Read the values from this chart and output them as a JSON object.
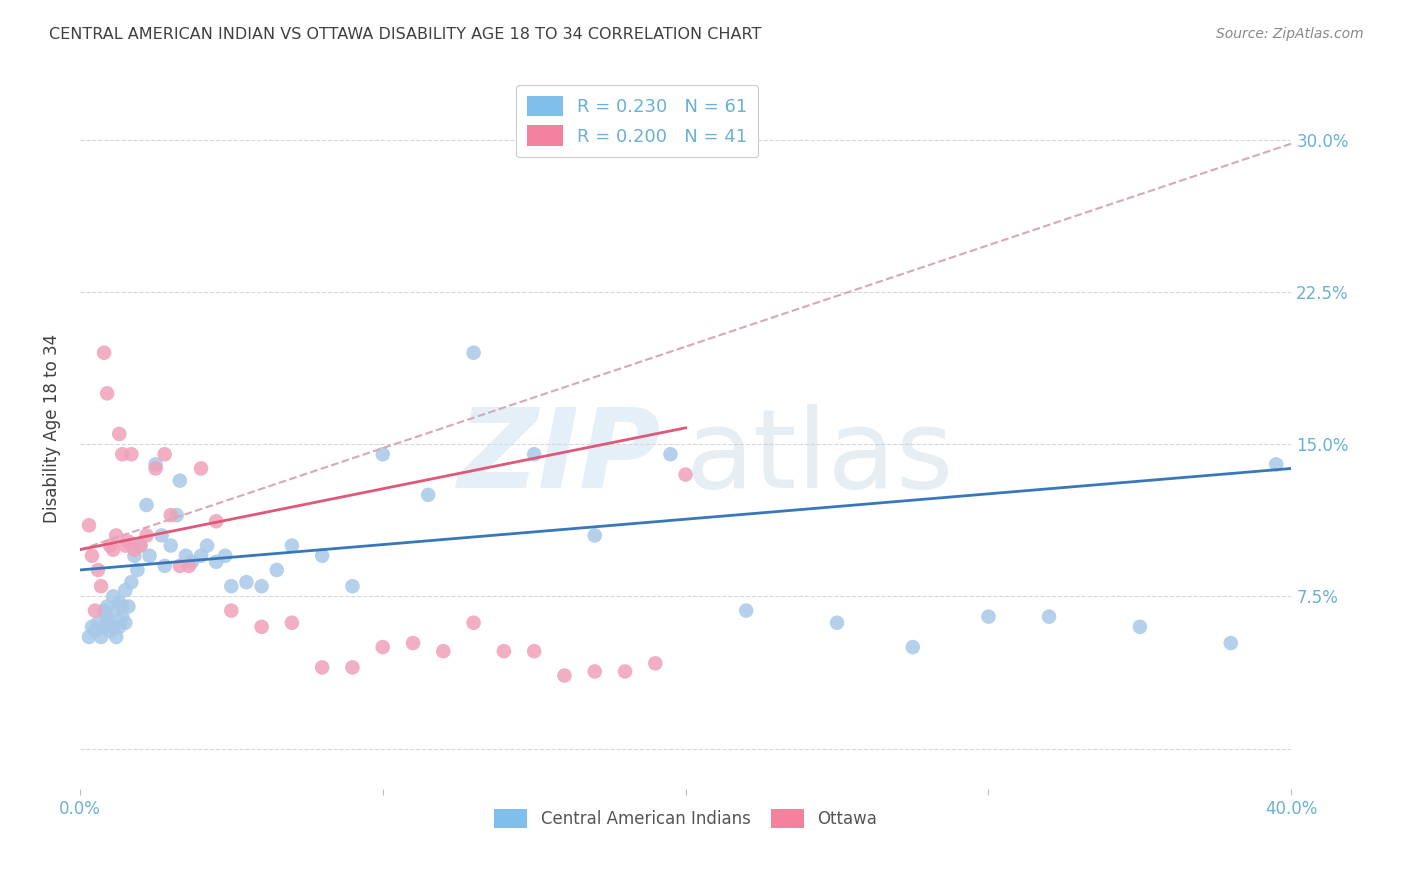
{
  "title": "CENTRAL AMERICAN INDIAN VS OTTAWA DISABILITY AGE 18 TO 34 CORRELATION CHART",
  "source": "Source: ZipAtlas.com",
  "ylabel": "Disability Age 18 to 34",
  "ytick_values": [
    0.0,
    0.075,
    0.15,
    0.225,
    0.3
  ],
  "ytick_labels": [
    "",
    "7.5%",
    "15.0%",
    "22.5%",
    "30.0%"
  ],
  "xlim": [
    0.0,
    0.4
  ],
  "ylim": [
    -0.02,
    0.335
  ],
  "legend_color1": "#7fbfea",
  "legend_color2": "#f4829e",
  "watermark_zip": "ZIP",
  "watermark_atlas": "atlas",
  "blue_scatter_x": [
    0.003,
    0.004,
    0.005,
    0.006,
    0.007,
    0.008,
    0.008,
    0.009,
    0.009,
    0.01,
    0.01,
    0.011,
    0.011,
    0.012,
    0.012,
    0.013,
    0.013,
    0.014,
    0.014,
    0.015,
    0.015,
    0.016,
    0.017,
    0.018,
    0.019,
    0.02,
    0.022,
    0.023,
    0.025,
    0.027,
    0.028,
    0.03,
    0.032,
    0.033,
    0.035,
    0.037,
    0.04,
    0.042,
    0.045,
    0.048,
    0.05,
    0.055,
    0.06,
    0.065,
    0.07,
    0.08,
    0.09,
    0.1,
    0.115,
    0.13,
    0.15,
    0.17,
    0.195,
    0.22,
    0.25,
    0.275,
    0.3,
    0.32,
    0.35,
    0.38,
    0.395
  ],
  "blue_scatter_y": [
    0.055,
    0.06,
    0.058,
    0.062,
    0.055,
    0.068,
    0.06,
    0.065,
    0.07,
    0.058,
    0.062,
    0.06,
    0.075,
    0.068,
    0.055,
    0.072,
    0.06,
    0.07,
    0.065,
    0.078,
    0.062,
    0.07,
    0.082,
    0.095,
    0.088,
    0.1,
    0.12,
    0.095,
    0.14,
    0.105,
    0.09,
    0.1,
    0.115,
    0.132,
    0.095,
    0.092,
    0.095,
    0.1,
    0.092,
    0.095,
    0.08,
    0.082,
    0.08,
    0.088,
    0.1,
    0.095,
    0.08,
    0.145,
    0.125,
    0.195,
    0.145,
    0.105,
    0.145,
    0.068,
    0.062,
    0.05,
    0.065,
    0.065,
    0.06,
    0.052,
    0.14
  ],
  "pink_scatter_x": [
    0.003,
    0.004,
    0.005,
    0.006,
    0.007,
    0.008,
    0.009,
    0.01,
    0.011,
    0.012,
    0.013,
    0.014,
    0.015,
    0.016,
    0.017,
    0.018,
    0.02,
    0.022,
    0.025,
    0.028,
    0.03,
    0.033,
    0.036,
    0.04,
    0.045,
    0.05,
    0.06,
    0.07,
    0.08,
    0.09,
    0.1,
    0.11,
    0.12,
    0.13,
    0.14,
    0.15,
    0.16,
    0.17,
    0.18,
    0.19,
    0.2
  ],
  "pink_scatter_y": [
    0.11,
    0.095,
    0.068,
    0.088,
    0.08,
    0.195,
    0.175,
    0.1,
    0.098,
    0.105,
    0.155,
    0.145,
    0.1,
    0.102,
    0.145,
    0.098,
    0.1,
    0.105,
    0.138,
    0.145,
    0.115,
    0.09,
    0.09,
    0.138,
    0.112,
    0.068,
    0.06,
    0.062,
    0.04,
    0.04,
    0.05,
    0.052,
    0.048,
    0.062,
    0.048,
    0.048,
    0.036,
    0.038,
    0.038,
    0.042,
    0.135
  ],
  "blue_line_x0": 0.0,
  "blue_line_x1": 0.4,
  "blue_line_y0": 0.088,
  "blue_line_y1": 0.138,
  "pink_solid_line_x0": 0.0,
  "pink_solid_line_x1": 0.2,
  "pink_solid_line_y0": 0.098,
  "pink_solid_line_y1": 0.158,
  "pink_dashed_line_x0": 0.0,
  "pink_dashed_line_x1": 0.4,
  "pink_dashed_line_y0": 0.098,
  "pink_dashed_line_y1": 0.298,
  "background_color": "#ffffff",
  "grid_color": "#d8d8d8",
  "scatter_blue": "#a8c8e8",
  "scatter_pink": "#f0a0b8",
  "line_blue": "#3878b8",
  "line_pink": "#e05878",
  "line_pink_dashed": "#d8a8b8",
  "axis_tick_color": "#6ab0d8",
  "title_color": "#404040",
  "source_color": "#888888",
  "ylabel_color": "#404040"
}
